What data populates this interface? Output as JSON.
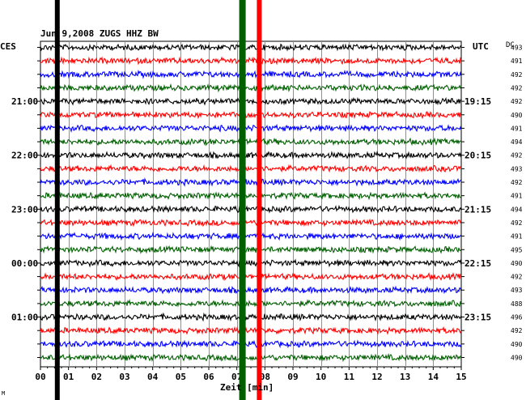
{
  "header": {
    "title": "Jun 9,2008   ZUGS HHZ BW",
    "left_label": "CES",
    "right_label": "UTC",
    "dc_label": "DC"
  },
  "chart_data": {
    "type": "line",
    "title": "Jun 9,2008   ZUGS HHZ BW",
    "xlabel": "Zeit [min]",
    "ylabel": "",
    "xlim": [
      0,
      15
    ],
    "x_ticks": [
      "00",
      "01",
      "02",
      "03",
      "04",
      "05",
      "06",
      "07",
      "08",
      "09",
      "10",
      "11",
      "12",
      "13",
      "14",
      "15"
    ],
    "trace_count": 24,
    "trace_colors": [
      "#000000",
      "#ff0000",
      "#0000ff",
      "#006000"
    ],
    "left_time_labels": [
      {
        "row": 4,
        "text": "21:00"
      },
      {
        "row": 8,
        "text": "22:00"
      },
      {
        "row": 12,
        "text": "23:00"
      },
      {
        "row": 16,
        "text": "00:00"
      },
      {
        "row": 20,
        "text": "01:00"
      }
    ],
    "right_time_labels": [
      {
        "row": 4,
        "text": "19:15"
      },
      {
        "row": 8,
        "text": "20:15"
      },
      {
        "row": 12,
        "text": "21:15"
      },
      {
        "row": 16,
        "text": "22:15"
      },
      {
        "row": 20,
        "text": "23:15"
      }
    ],
    "dc_values": [
      "493",
      "491",
      "492",
      "492",
      "492",
      "490",
      "491",
      "494",
      "492",
      "493",
      "492",
      "491",
      "494",
      "492",
      "491",
      "495",
      "490",
      "492",
      "493",
      "488",
      "496",
      "492",
      "490",
      "490"
    ],
    "marker_lines": [
      {
        "x": 0.6,
        "color": "#000000"
      },
      {
        "x": 7.2,
        "color": "#006000"
      },
      {
        "x": 7.8,
        "color": "#ff0000"
      }
    ],
    "grid": true,
    "footer_mark": "M"
  }
}
